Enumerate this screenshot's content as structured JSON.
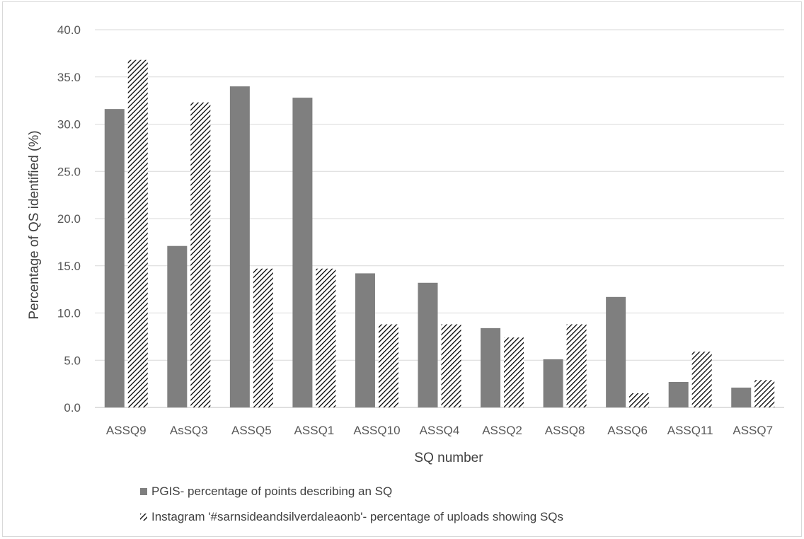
{
  "chart_data": {
    "type": "bar",
    "xlabel": "SQ number",
    "ylabel": "Percentage of QS identified (%)",
    "ylim": [
      0,
      40
    ],
    "yticks": [
      "0.0",
      "5.0",
      "10.0",
      "15.0",
      "20.0",
      "25.0",
      "30.0",
      "35.0",
      "40.0"
    ],
    "grid": true,
    "legend_position": "bottom",
    "categories": [
      "ASSQ9",
      "AsSQ3",
      "ASSQ5",
      "ASSQ1",
      "ASSQ10",
      "ASSQ4",
      "ASSQ2",
      "ASSQ8",
      "ASSQ6",
      "ASSQ11",
      "ASSQ7"
    ],
    "series": [
      {
        "name": "PGIS- percentage of points describing an SQ",
        "fill": "solid",
        "color": "#7f7f7f",
        "values": [
          31.6,
          17.1,
          34.0,
          32.8,
          14.2,
          13.2,
          8.4,
          5.1,
          11.7,
          2.7,
          2.1
        ]
      },
      {
        "name": "Instagram '#sarnsideandsilverdaleaonb'- percentage of uploads showing SQs",
        "fill": "hatched",
        "color": "#000000",
        "values": [
          36.8,
          32.3,
          14.7,
          14.7,
          8.8,
          8.8,
          7.4,
          8.8,
          1.5,
          5.9,
          2.9
        ]
      }
    ]
  }
}
